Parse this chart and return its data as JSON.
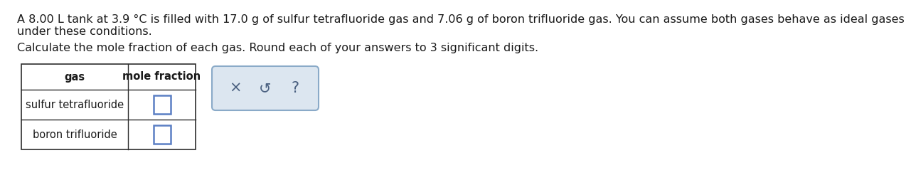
{
  "line1": "A 8.00 L tank at 3.9 °C is filled with 17.0 g of sulfur tetrafluoride gas and 7.06 g of boron trifluoride gas. You can assume both gases behave as ideal gases",
  "line2": "under these conditions.",
  "line3": "Calculate the mole fraction of each gas. Round each of your answers to 3 significant digits.",
  "table_header_col1": "gas",
  "table_header_col2": "mole fraction",
  "table_row1": "sulfur tetrafluoride",
  "table_row2": "boron trifluoride",
  "box_symbols": [
    "×",
    "↺",
    "?"
  ],
  "bg_color": "#ffffff",
  "text_color": "#1a1a1a",
  "table_border_color": "#2d2d2d",
  "input_box_color": "#5b7fc4",
  "button_bg_color": "#dce6f0",
  "button_border_color": "#8aaac8",
  "font_size_body": 11.5,
  "font_size_table_header": 10.5,
  "font_size_table_body": 10.5,
  "font_size_symbols": 15
}
